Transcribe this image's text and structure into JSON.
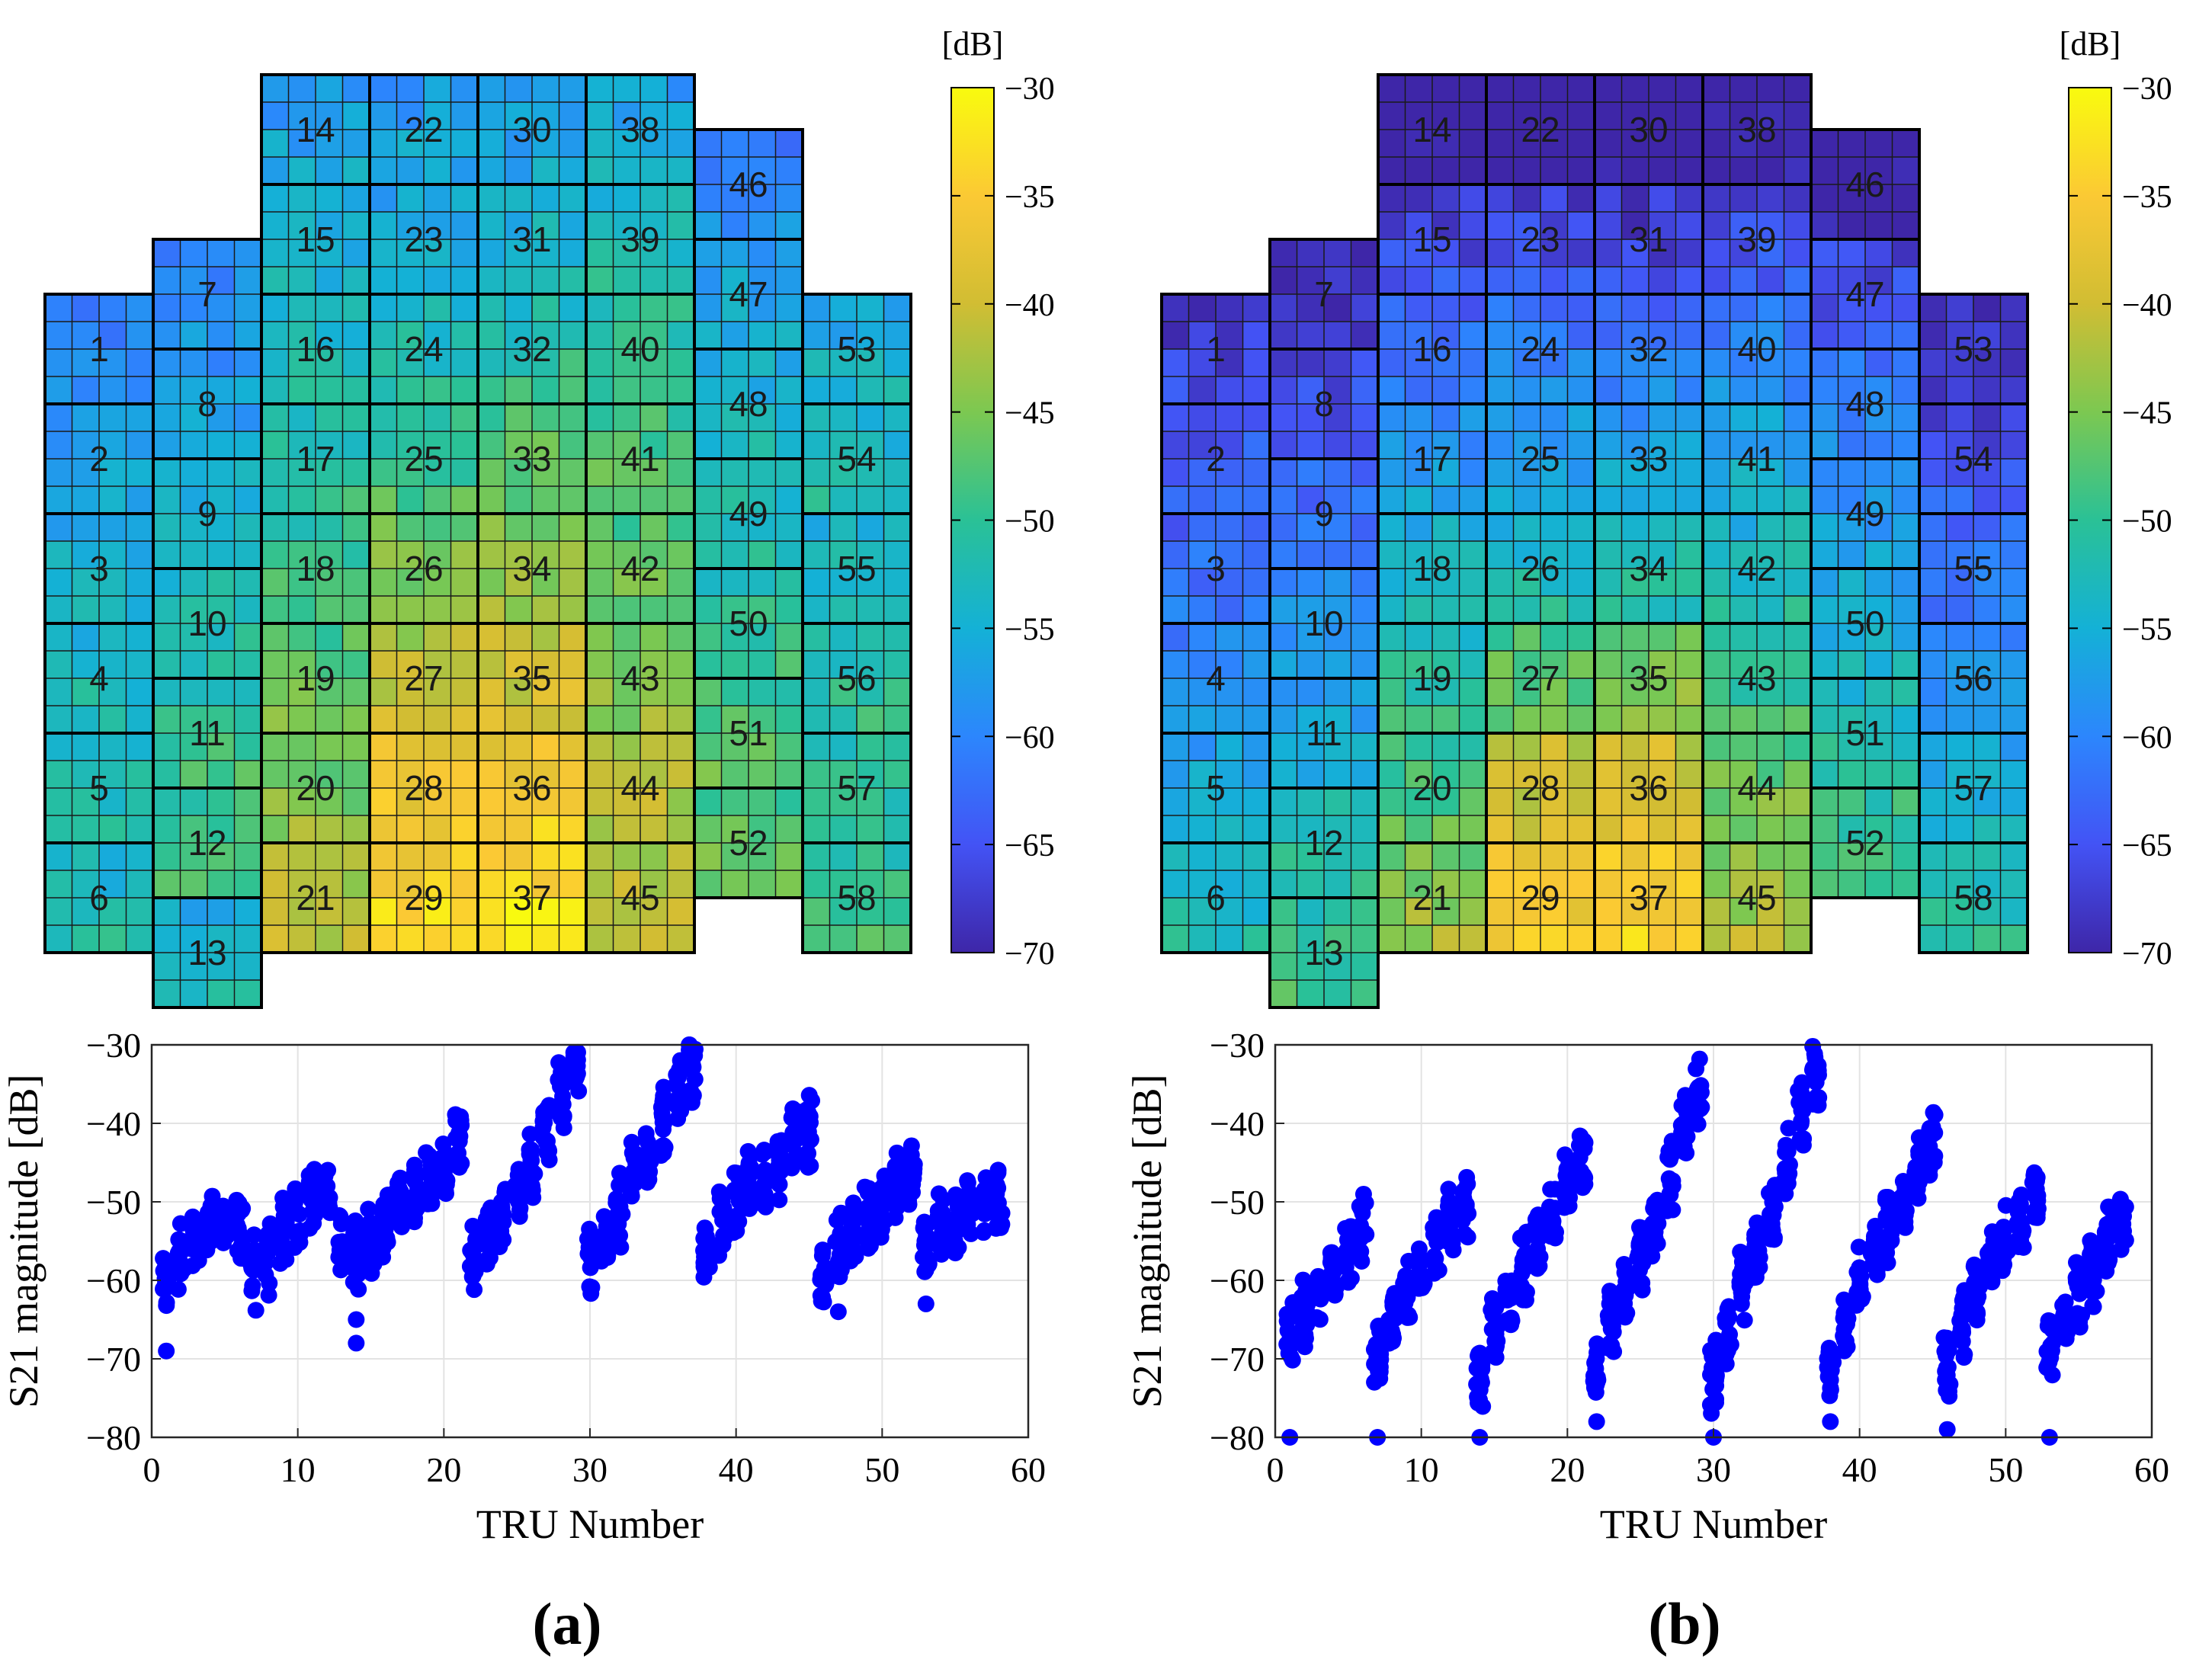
{
  "figure": {
    "panel_labels": [
      "(a)",
      "(b)"
    ],
    "colorbar_unit": "[dB]",
    "colorbar_ticks": [
      "-30",
      "-35",
      "-40",
      "-45",
      "-50",
      "-55",
      "-60",
      "-65",
      "-70"
    ],
    "colorbar_range": [
      -70,
      -30
    ],
    "array_tiles": {
      "rows": [
        {
          "cols": [
            3,
            4,
            5,
            6
          ],
          "labels": [
            14,
            22,
            30,
            38
          ]
        },
        {
          "cols": [
            2,
            3,
            4,
            5,
            6,
            7
          ],
          "labels": [
            7,
            15,
            23,
            31,
            39,
            46
          ]
        },
        {
          "cols": [
            1,
            2,
            3,
            4,
            5,
            6,
            7,
            8
          ],
          "labels": [
            1,
            8,
            16,
            24,
            32,
            40,
            47,
            53
          ]
        },
        {
          "cols": [
            1,
            2,
            3,
            4,
            5,
            6,
            7,
            8
          ],
          "labels": [
            2,
            9,
            17,
            25,
            33,
            41,
            48,
            54
          ]
        },
        {
          "cols": [
            1,
            2,
            3,
            4,
            5,
            6,
            7,
            8
          ],
          "labels": [
            3,
            10,
            18,
            26,
            34,
            42,
            49,
            55
          ]
        },
        {
          "cols": [
            1,
            2,
            3,
            4,
            5,
            6,
            7,
            8
          ],
          "labels": [
            4,
            11,
            19,
            27,
            35,
            43,
            50,
            56
          ]
        },
        {
          "cols": [
            1,
            2,
            3,
            4,
            5,
            6,
            7,
            8
          ],
          "labels": [
            5,
            12,
            20,
            28,
            36,
            44,
            51,
            57
          ]
        },
        {
          "cols": [
            1,
            2,
            3,
            4,
            5,
            6,
            7,
            8
          ],
          "labels": [
            6,
            13,
            21,
            29,
            37,
            45,
            52,
            58
          ]
        }
      ]
    }
  },
  "chart_data": [
    {
      "type": "heatmap",
      "panel": "(a)",
      "title": "",
      "colorbar_label": "[dB]",
      "clim": [
        -70,
        -30
      ],
      "tru_mean_dB": {
        "1": -60,
        "2": -57,
        "3": -55,
        "4": -53,
        "5": -52,
        "6": -53,
        "7": -59,
        "8": -57,
        "9": -54,
        "10": -52,
        "11": -50,
        "12": -49,
        "13": -54,
        "14": -57,
        "15": -55,
        "16": -53,
        "17": -51,
        "18": -49,
        "19": -47,
        "20": -45,
        "21": -42,
        "22": -57,
        "23": -55,
        "24": -52,
        "25": -49,
        "26": -45,
        "27": -41,
        "28": -37,
        "29": -34,
        "30": -57,
        "31": -54,
        "32": -51,
        "33": -47,
        "34": -44,
        "35": -40,
        "36": -36,
        "37": -33,
        "38": -56,
        "39": -53,
        "40": -50,
        "41": -48,
        "42": -47,
        "43": -45,
        "44": -42,
        "45": -41,
        "46": -60,
        "47": -56,
        "48": -54,
        "49": -52,
        "50": -50,
        "51": -48,
        "52": -47,
        "53": -55,
        "54": -53,
        "55": -53,
        "56": -51,
        "57": -51,
        "58": -50
      }
    },
    {
      "type": "heatmap",
      "panel": "(b)",
      "title": "",
      "colorbar_label": "[dB]",
      "clim": [
        -70,
        -30
      ],
      "tru_mean_dB": {
        "1": -67,
        "2": -64,
        "3": -62,
        "4": -59,
        "5": -56,
        "6": -53,
        "7": -69,
        "8": -65,
        "9": -62,
        "10": -59,
        "11": -56,
        "12": -52,
        "13": -50,
        "14": -72,
        "15": -66,
        "16": -62,
        "17": -58,
        "18": -54,
        "19": -51,
        "20": -48,
        "21": -44,
        "22": -72,
        "23": -66,
        "24": -61,
        "25": -57,
        "26": -53,
        "27": -47,
        "28": -40,
        "29": -36,
        "30": -72,
        "31": -67,
        "32": -61,
        "33": -57,
        "34": -52,
        "35": -45,
        "36": -39,
        "37": -35,
        "38": -71,
        "39": -65,
        "40": -60,
        "41": -56,
        "42": -53,
        "43": -50,
        "44": -46,
        "45": -43,
        "46": -71,
        "47": -65,
        "48": -61,
        "49": -58,
        "50": -55,
        "51": -52,
        "52": -49,
        "53": -68,
        "54": -65,
        "55": -62,
        "56": -59,
        "57": -55,
        "58": -52
      }
    },
    {
      "type": "scatter",
      "panel": "(a)",
      "title": "",
      "xlabel": "TRU Number",
      "ylabel": "S21 magnitude [dB]",
      "xlim": [
        0,
        60
      ],
      "ylim": [
        -80,
        -30
      ],
      "xticks": [
        "0",
        "10",
        "20",
        "30",
        "40",
        "50",
        "60"
      ],
      "yticks": [
        "-30",
        "-40",
        "-50",
        "-60",
        "-70",
        "-80"
      ],
      "grid": true,
      "series": [
        {
          "name": "S21",
          "color": "#0000ff",
          "x_range": [
            1,
            58
          ],
          "mean_by_tru": "tru_mean_dB of panel (a)",
          "outliers": [
            [
              1,
              -69
            ],
            [
              14,
              -65
            ],
            [
              14,
              -68
            ],
            [
              47,
              -64
            ],
            [
              53,
              -63
            ]
          ]
        }
      ]
    },
    {
      "type": "scatter",
      "panel": "(b)",
      "title": "",
      "xlabel": "TRU Number",
      "ylabel": "S21 magnitude [dB]",
      "xlim": [
        0,
        60
      ],
      "ylim": [
        -80,
        -30
      ],
      "xticks": [
        "0",
        "10",
        "20",
        "30",
        "40",
        "50",
        "60"
      ],
      "yticks": [
        "-30",
        "-40",
        "-50",
        "-60",
        "-70",
        "-80"
      ],
      "grid": true,
      "series": [
        {
          "name": "S21",
          "color": "#0000ff",
          "x_range": [
            1,
            58
          ],
          "mean_by_tru": "tru_mean_dB of panel (b)",
          "outliers": [
            [
              1,
              -80
            ],
            [
              7,
              -80
            ],
            [
              14,
              -80
            ],
            [
              22,
              -78
            ],
            [
              30,
              -80
            ],
            [
              38,
              -78
            ],
            [
              46,
              -79
            ],
            [
              53,
              -80
            ]
          ]
        }
      ]
    }
  ]
}
